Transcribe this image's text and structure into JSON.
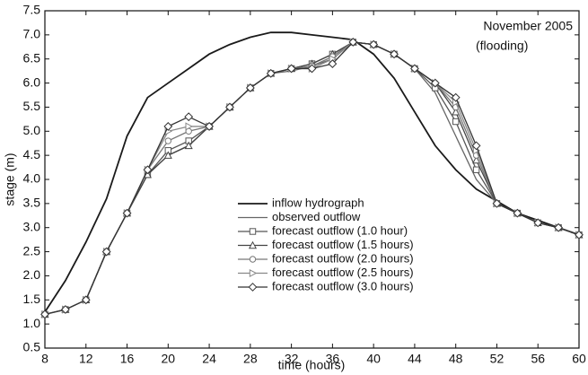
{
  "chart_data": {
    "type": "line",
    "annotation": [
      "November 2005",
      "(flooding)"
    ],
    "x_label": "time (hours)",
    "y_label": "stage (m)",
    "x": [
      8,
      10,
      12,
      14,
      16,
      18,
      20,
      22,
      24,
      26,
      28,
      30,
      32,
      34,
      36,
      38,
      40,
      42,
      44,
      46,
      48,
      50,
      52,
      54,
      56,
      58,
      60
    ],
    "series": [
      {
        "name": "inflow hydrograph",
        "color": "#1a1a1a",
        "marker": "none",
        "values": [
          1.25,
          1.9,
          2.7,
          3.6,
          4.9,
          5.7,
          6.0,
          6.3,
          6.6,
          6.8,
          6.95,
          7.05,
          7.05,
          7.0,
          6.95,
          6.9,
          6.6,
          6.1,
          5.4,
          4.7,
          4.2,
          3.8,
          3.55,
          3.3,
          3.15,
          3.0,
          2.85
        ]
      },
      {
        "name": "observed outflow",
        "color": "#666666",
        "marker": "none",
        "values": [
          1.2,
          1.3,
          1.5,
          2.5,
          3.3,
          4.1,
          4.5,
          4.7,
          5.1,
          5.5,
          5.9,
          6.2,
          6.25,
          6.35,
          6.5,
          6.85,
          6.8,
          6.6,
          6.3,
          5.8,
          4.9,
          4.0,
          3.5,
          3.3,
          3.1,
          3.0,
          2.85
        ]
      },
      {
        "name": "forecast outflow (1.0 hour)",
        "color": "#555555",
        "marker": "square",
        "values": [
          1.2,
          1.3,
          1.5,
          2.5,
          3.3,
          4.1,
          4.6,
          4.8,
          5.1,
          5.5,
          5.9,
          6.2,
          6.3,
          6.4,
          6.6,
          6.85,
          6.8,
          6.6,
          6.3,
          5.9,
          5.2,
          4.2,
          3.5,
          3.3,
          3.1,
          3.0,
          2.85
        ]
      },
      {
        "name": "forecast outflow (1.5 hours)",
        "color": "#444444",
        "marker": "triangle",
        "values": [
          1.2,
          1.3,
          1.5,
          2.5,
          3.3,
          4.1,
          4.5,
          4.7,
          5.1,
          5.5,
          5.9,
          6.2,
          6.3,
          6.4,
          6.6,
          6.85,
          6.8,
          6.6,
          6.3,
          6.0,
          5.4,
          4.4,
          3.5,
          3.3,
          3.1,
          3.0,
          2.85
        ]
      },
      {
        "name": "forecast outflow (2.0 hours)",
        "color": "#777777",
        "marker": "circle",
        "values": [
          1.2,
          1.3,
          1.5,
          2.5,
          3.3,
          4.2,
          4.8,
          5.0,
          5.1,
          5.5,
          5.9,
          6.2,
          6.3,
          6.35,
          6.55,
          6.85,
          6.8,
          6.6,
          6.3,
          6.0,
          5.5,
          4.5,
          3.5,
          3.3,
          3.1,
          3.0,
          2.85
        ]
      },
      {
        "name": "forecast outflow (2.5 hours)",
        "color": "#888888",
        "marker": "right-triangle",
        "values": [
          1.2,
          1.3,
          1.5,
          2.5,
          3.3,
          4.2,
          5.0,
          5.1,
          5.1,
          5.5,
          5.9,
          6.2,
          6.3,
          6.3,
          6.5,
          6.85,
          6.8,
          6.6,
          6.3,
          6.0,
          5.6,
          4.6,
          3.5,
          3.3,
          3.1,
          3.0,
          2.85
        ]
      },
      {
        "name": "forecast outflow (3.0 hours)",
        "color": "#333333",
        "marker": "diamond",
        "values": [
          1.2,
          1.3,
          1.5,
          2.5,
          3.3,
          4.2,
          5.1,
          5.3,
          5.1,
          5.5,
          5.9,
          6.2,
          6.3,
          6.3,
          6.4,
          6.85,
          6.8,
          6.6,
          6.3,
          6.0,
          5.7,
          4.7,
          3.5,
          3.3,
          3.1,
          3.0,
          2.85
        ]
      }
    ],
    "xlim": [
      8,
      60
    ],
    "xticks": [
      8,
      12,
      16,
      20,
      24,
      28,
      32,
      36,
      40,
      44,
      48,
      52,
      56,
      60
    ],
    "ylim": [
      0.5,
      7.5
    ],
    "yticks": [
      0.5,
      {
        "value": 1,
        "label": "1.0"
      },
      1.5,
      {
        "value": 2,
        "label": "2.0"
      },
      2.5,
      {
        "value": 3,
        "label": "3.0"
      },
      3.5,
      {
        "value": 4,
        "label": "4.0"
      },
      4.5,
      {
        "value": 5,
        "label": "5.0"
      },
      5.5,
      {
        "value": 6,
        "label": "6.0"
      },
      6.5,
      {
        "value": 7,
        "label": "7.0"
      },
      7.5
    ],
    "grid": false,
    "legend": "center"
  }
}
